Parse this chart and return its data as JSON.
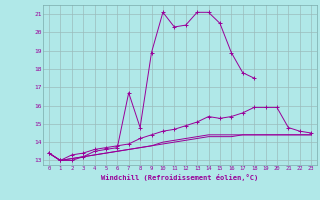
{
  "x": [
    0,
    1,
    2,
    3,
    4,
    5,
    6,
    7,
    8,
    9,
    10,
    11,
    12,
    13,
    14,
    15,
    16,
    17,
    18,
    19,
    20,
    21,
    22,
    23
  ],
  "line1": [
    13.4,
    13.0,
    13.0,
    13.2,
    13.5,
    13.6,
    13.7,
    16.7,
    14.8,
    18.9,
    21.1,
    20.3,
    20.4,
    21.1,
    21.1,
    20.5,
    18.9,
    17.8,
    17.5,
    null,
    null,
    null,
    null,
    null
  ],
  "line2": [
    13.4,
    13.0,
    13.3,
    13.4,
    13.6,
    13.7,
    13.8,
    13.9,
    14.2,
    14.4,
    14.6,
    14.7,
    14.9,
    15.1,
    15.4,
    15.3,
    15.4,
    15.6,
    15.9,
    15.9,
    15.9,
    14.8,
    14.6,
    14.5
  ],
  "line3": [
    13.4,
    13.0,
    13.1,
    13.2,
    13.3,
    13.4,
    13.5,
    13.6,
    13.7,
    13.8,
    13.9,
    14.0,
    14.1,
    14.2,
    14.3,
    14.3,
    14.3,
    14.4,
    14.4,
    14.4,
    14.4,
    14.4,
    14.4,
    14.4
  ],
  "line4": [
    13.4,
    13.0,
    13.1,
    13.2,
    13.3,
    13.4,
    13.5,
    13.6,
    13.7,
    13.8,
    14.0,
    14.1,
    14.2,
    14.3,
    14.4,
    14.4,
    14.4,
    14.4,
    14.4,
    14.4,
    14.4,
    14.4,
    14.4,
    14.4
  ],
  "color": "#990099",
  "bg_color": "#b0e8e8",
  "grid_color": "#9bbcbc",
  "xlabel": "Windchill (Refroidissement éolien,°C)",
  "ylim": [
    12.75,
    21.5
  ],
  "xlim": [
    -0.5,
    23.5
  ],
  "yticks": [
    13,
    14,
    15,
    16,
    17,
    18,
    19,
    20,
    21
  ],
  "xticks": [
    0,
    1,
    2,
    3,
    4,
    5,
    6,
    7,
    8,
    9,
    10,
    11,
    12,
    13,
    14,
    15,
    16,
    17,
    18,
    19,
    20,
    21,
    22,
    23
  ]
}
